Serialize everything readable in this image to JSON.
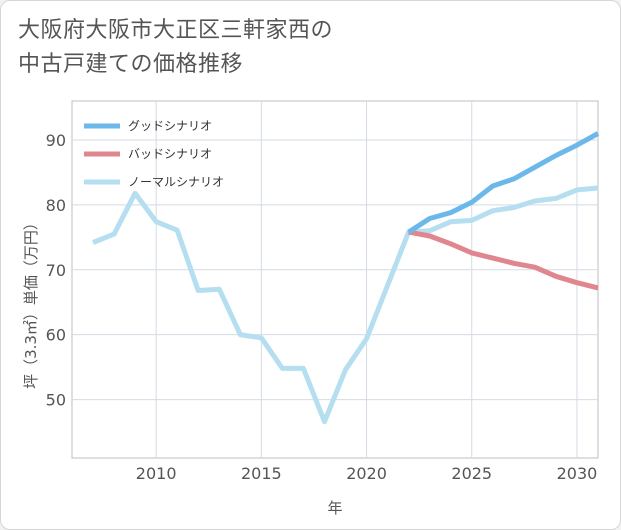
{
  "title_line1": "大阪府大阪市大正区三軒家西の",
  "title_line2": "中古戸建ての価格推移",
  "chart_data": {
    "type": "line",
    "title": "大阪府大阪市大正区三軒家西の中古戸建ての価格推移",
    "xlabel": "年",
    "ylabel": "坪（3.3㎡）単価（万円）",
    "xlim": [
      2006,
      2031
    ],
    "ylim": [
      41,
      96
    ],
    "xticks": [
      2010,
      2015,
      2020,
      2025,
      2030
    ],
    "yticks": [
      50,
      60,
      70,
      80,
      90
    ],
    "grid": true,
    "legend_position": "top-left",
    "series": [
      {
        "name": "グッドシナリオ",
        "color": "#6cb8ea",
        "x": [
          2022,
          2023,
          2024,
          2025,
          2026,
          2027,
          2028,
          2029,
          2030,
          2031
        ],
        "values": [
          75.8,
          77.9,
          78.8,
          80.4,
          82.9,
          84.0,
          85.8,
          87.6,
          89.2,
          91.0
        ]
      },
      {
        "name": "バッドシナリオ",
        "color": "#e0868f",
        "x": [
          2022,
          2023,
          2024,
          2025,
          2026,
          2027,
          2028,
          2029,
          2030,
          2031
        ],
        "values": [
          75.8,
          75.2,
          74.0,
          72.6,
          71.8,
          71.0,
          70.4,
          69.0,
          68.0,
          67.2
        ]
      },
      {
        "name": "ノーマルシナリオ",
        "color": "#b5dff0",
        "x": [
          2007,
          2008,
          2009,
          2010,
          2011,
          2012,
          2013,
          2014,
          2015,
          2016,
          2017,
          2018,
          2019,
          2020,
          2021,
          2022,
          2023,
          2024,
          2025,
          2026,
          2027,
          2028,
          2029,
          2030,
          2031
        ],
        "values": [
          74.2,
          75.5,
          81.8,
          77.4,
          76.1,
          66.8,
          67.0,
          60.0,
          59.5,
          54.8,
          54.8,
          46.6,
          54.6,
          59.4,
          67.6,
          75.8,
          76.0,
          77.4,
          77.6,
          79.1,
          79.6,
          80.6,
          81.0,
          82.3,
          82.6
        ]
      }
    ]
  }
}
